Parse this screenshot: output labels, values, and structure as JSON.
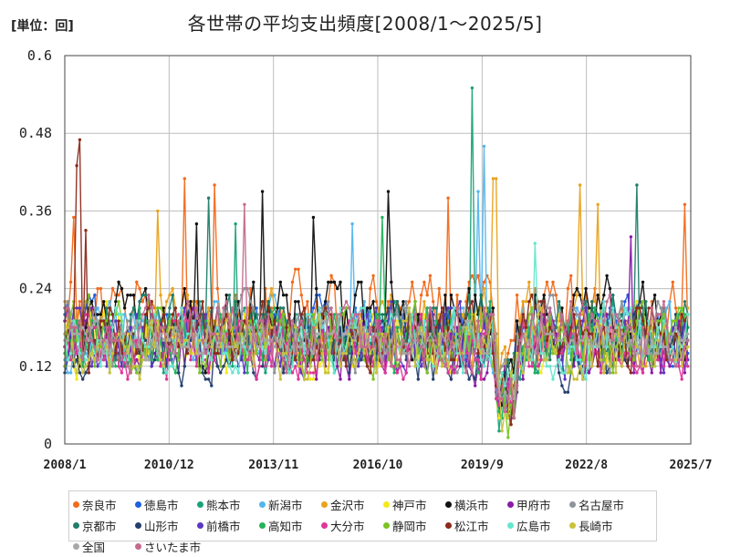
{
  "chart_data": {
    "type": "line",
    "unit_label": "[単位：回]",
    "title": "各世帯の平均支出頻度[2008/1～2025/5]",
    "xlabel": "",
    "ylabel": "",
    "x_range": [
      "2008/1",
      "2025/7"
    ],
    "ylim": [
      0,
      0.6
    ],
    "y_ticks": [
      "0",
      "0.12",
      "0.24",
      "0.36",
      "0.48",
      "0.6"
    ],
    "x_ticks": [
      "2008/1",
      "2010/12",
      "2013/11",
      "2016/10",
      "2019/9",
      "2022/8",
      "2025/7"
    ],
    "grid": true,
    "legend_position": "bottom",
    "series": [
      {
        "name": "奈良市",
        "color": "#f26a1b",
        "base": 0.2,
        "amp": 0.07,
        "seed": 11,
        "spikes": [
          [
            3,
            0.35
          ],
          [
            40,
            0.41
          ],
          [
            50,
            0.4
          ],
          [
            128,
            0.38
          ],
          [
            207,
            0.37
          ]
        ]
      },
      {
        "name": "徳島市",
        "color": "#1f5fe0",
        "base": 0.17,
        "amp": 0.06,
        "seed": 23,
        "spikes": []
      },
      {
        "name": "熊本市",
        "color": "#1aa37a",
        "base": 0.16,
        "amp": 0.06,
        "seed": 37,
        "spikes": [
          [
            136,
            0.55
          ],
          [
            57,
            0.34
          ]
        ]
      },
      {
        "name": "新潟市",
        "color": "#53b6ee",
        "base": 0.17,
        "amp": 0.06,
        "seed": 41,
        "spikes": [
          [
            140,
            0.46
          ],
          [
            138,
            0.39
          ],
          [
            96,
            0.34
          ]
        ]
      },
      {
        "name": "金沢市",
        "color": "#e9a21a",
        "base": 0.18,
        "amp": 0.07,
        "seed": 53,
        "spikes": [
          [
            144,
            0.41
          ],
          [
            143,
            0.41
          ],
          [
            172,
            0.4
          ],
          [
            178,
            0.37
          ],
          [
            31,
            0.36
          ]
        ]
      },
      {
        "name": "神戸市",
        "color": "#f4e91a",
        "base": 0.16,
        "amp": 0.06,
        "seed": 67,
        "spikes": []
      },
      {
        "name": "横浜市",
        "color": "#111111",
        "base": 0.19,
        "amp": 0.07,
        "seed": 71,
        "spikes": [
          [
            66,
            0.39
          ],
          [
            108,
            0.39
          ],
          [
            44,
            0.34
          ],
          [
            83,
            0.35
          ]
        ]
      },
      {
        "name": "甲府市",
        "color": "#8a1aa8",
        "base": 0.15,
        "amp": 0.06,
        "seed": 83,
        "spikes": [
          [
            189,
            0.32
          ]
        ]
      },
      {
        "name": "名古屋市",
        "color": "#8e9499",
        "base": 0.17,
        "amp": 0.06,
        "seed": 97,
        "spikes": []
      },
      {
        "name": "京都市",
        "color": "#1f7d6a",
        "base": 0.18,
        "amp": 0.06,
        "seed": 101,
        "spikes": [
          [
            48,
            0.38
          ],
          [
            191,
            0.4
          ]
        ]
      },
      {
        "name": "山形市",
        "color": "#25406e",
        "base": 0.15,
        "amp": 0.06,
        "seed": 113,
        "spikes": []
      },
      {
        "name": "前橋市",
        "color": "#5a36c4",
        "base": 0.16,
        "amp": 0.06,
        "seed": 127,
        "spikes": []
      },
      {
        "name": "高知市",
        "color": "#22b35b",
        "base": 0.16,
        "amp": 0.06,
        "seed": 131,
        "spikes": [
          [
            106,
            0.35
          ]
        ]
      },
      {
        "name": "大分市",
        "color": "#e0359a",
        "base": 0.15,
        "amp": 0.06,
        "seed": 149,
        "spikes": []
      },
      {
        "name": "静岡市",
        "color": "#7cc425",
        "base": 0.16,
        "amp": 0.06,
        "seed": 157,
        "spikes": []
      },
      {
        "name": "松江市",
        "color": "#8c2a1c",
        "base": 0.17,
        "amp": 0.06,
        "seed": 163,
        "spikes": [
          [
            5,
            0.47
          ],
          [
            4,
            0.43
          ],
          [
            7,
            0.33
          ]
        ]
      },
      {
        "name": "広島市",
        "color": "#66e6cf",
        "base": 0.16,
        "amp": 0.06,
        "seed": 179,
        "spikes": [
          [
            157,
            0.31
          ]
        ]
      },
      {
        "name": "長崎市",
        "color": "#c9c23b",
        "base": 0.15,
        "amp": 0.06,
        "seed": 181,
        "spikes": []
      },
      {
        "name": "全国",
        "color": "#a8a8a8",
        "base": 0.16,
        "amp": 0.03,
        "seed": 191,
        "spikes": []
      },
      {
        "name": "さいたま市",
        "color": "#c46b8e",
        "base": 0.17,
        "amp": 0.06,
        "seed": 199,
        "spikes": [
          [
            60,
            0.37
          ]
        ]
      }
    ]
  }
}
